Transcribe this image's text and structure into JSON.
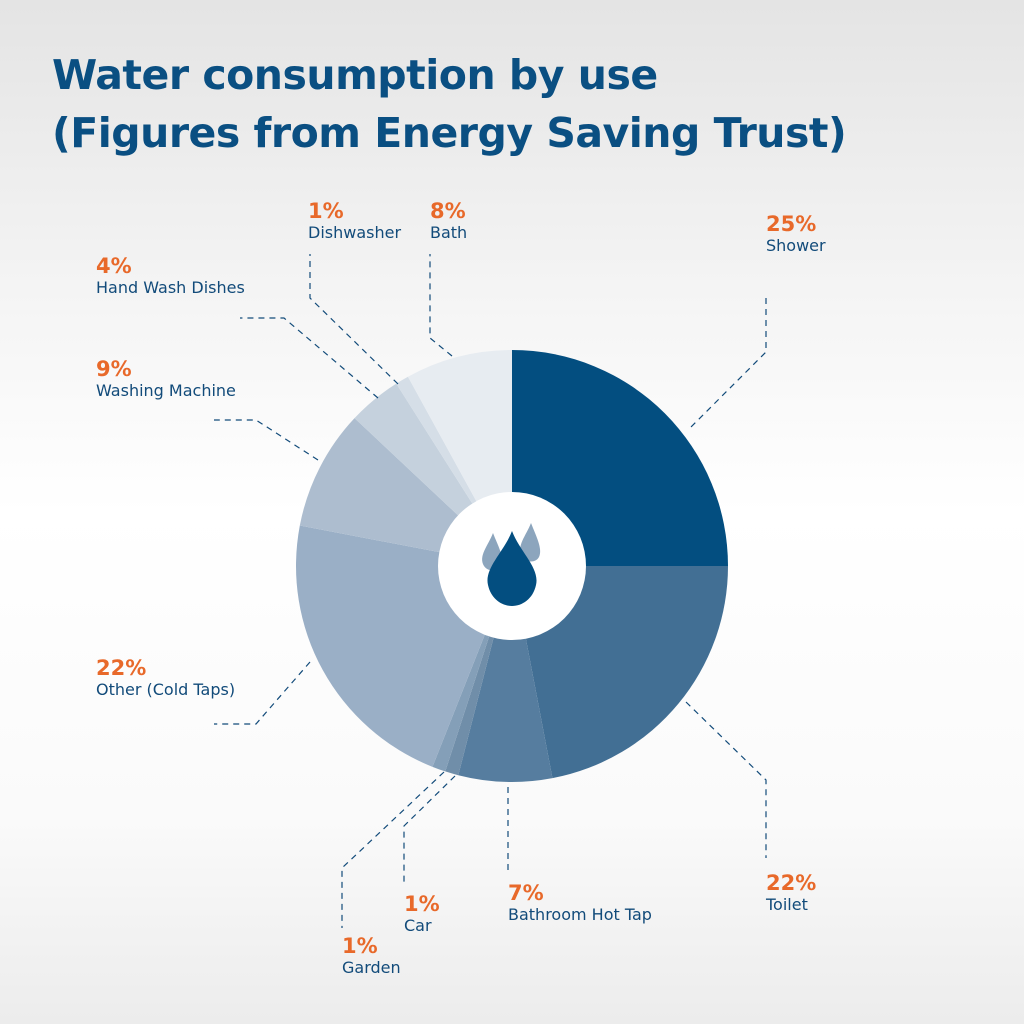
{
  "title_line1": "Water consumption by use",
  "title_line2": "(Figures from Energy Saving Trust)",
  "chart_data": {
    "type": "pie",
    "style": "donut",
    "center_icon": "water-drops-icon",
    "start_angle_deg": 0,
    "direction": "clockwise",
    "slices": [
      {
        "label": "Shower",
        "value": 25,
        "pct_label": "25%",
        "color": "#034e80"
      },
      {
        "label": "Toilet",
        "value": 22,
        "pct_label": "22%",
        "color": "#426f94"
      },
      {
        "label": "Bathroom Hot Tap",
        "value": 7,
        "pct_label": "7%",
        "color": "#567d9f"
      },
      {
        "label": "Car",
        "value": 1,
        "pct_label": "1%",
        "color": "#708ea9"
      },
      {
        "label": "Garden",
        "value": 1,
        "pct_label": "1%",
        "color": "#849fb8"
      },
      {
        "label": "Other (Cold Taps)",
        "value": 22,
        "pct_label": "22%",
        "color": "#9aafc6"
      },
      {
        "label": "Washing Machine",
        "value": 9,
        "pct_label": "9%",
        "color": "#adbdcf"
      },
      {
        "label": "Hand Wash Dishes",
        "value": 4,
        "pct_label": "4%",
        "color": "#c5d1dd"
      },
      {
        "label": "Dishwasher",
        "value": 1,
        "pct_label": "1%",
        "color": "#d5dee7"
      },
      {
        "label": "Bath",
        "value": 8,
        "pct_label": "8%",
        "color": "#e7ecf1"
      }
    ],
    "leader_line_color": "#124b7a"
  }
}
